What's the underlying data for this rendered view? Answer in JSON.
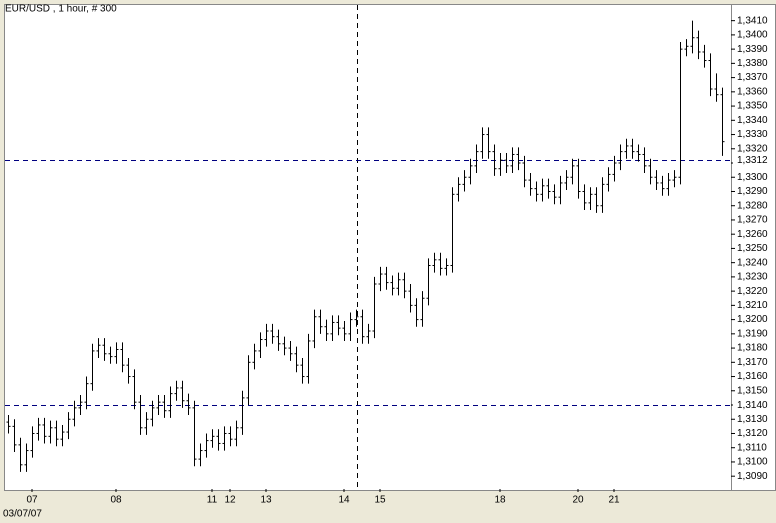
{
  "chart_data": {
    "type": "ohlc",
    "title": "EUR/USD , 1 hour, # 300",
    "date_label": "03/07/07",
    "categories": [
      null,
      null,
      null,
      null,
      "07",
      null,
      null,
      null,
      null,
      null,
      null,
      null,
      null,
      null,
      null,
      null,
      null,
      null,
      "08",
      null,
      null,
      null,
      null,
      null,
      null,
      null,
      null,
      null,
      null,
      null,
      null,
      null,
      null,
      null,
      "11",
      null,
      null,
      "12",
      null,
      null,
      null,
      null,
      null,
      "13",
      null,
      null,
      null,
      null,
      null,
      null,
      null,
      null,
      null,
      null,
      null,
      null,
      "14",
      null,
      null,
      null,
      null,
      null,
      "15",
      null,
      null,
      null,
      null,
      null,
      null,
      null,
      null,
      null,
      null,
      null,
      null,
      null,
      null,
      null,
      null,
      null,
      null,
      null,
      "18",
      null,
      null,
      null,
      null,
      null,
      null,
      null,
      null,
      null,
      null,
      null,
      null,
      "20",
      null,
      null,
      null,
      null,
      null,
      "21",
      null,
      null,
      null,
      null,
      null,
      null,
      null,
      null,
      null,
      null,
      null,
      null,
      null,
      null,
      null,
      null,
      null,
      null
    ],
    "open": [
      1.3128,
      1.3125,
      1.3112,
      1.3098,
      1.3108,
      1.312,
      1.3126,
      1.3118,
      1.3124,
      1.3116,
      1.3121,
      1.313,
      1.3138,
      1.3142,
      1.3155,
      1.3178,
      1.3182,
      1.3176,
      1.3174,
      1.3179,
      1.3168,
      1.316,
      1.3142,
      1.3124,
      1.313,
      1.3138,
      1.3142,
      1.3136,
      1.3148,
      1.3152,
      1.3143,
      1.3138,
      1.3102,
      1.3108,
      1.3115,
      1.3118,
      1.3113,
      1.312,
      1.3116,
      1.3124,
      1.3145,
      1.317,
      1.3178,
      1.3186,
      1.3192,
      1.3188,
      1.3183,
      1.318,
      1.3176,
      1.3168,
      1.316,
      1.3185,
      1.3202,
      1.3195,
      1.319,
      1.3198,
      1.3194,
      1.319,
      1.32,
      1.3202,
      1.3188,
      1.3192,
      1.3225,
      1.3232,
      1.3226,
      1.3222,
      1.3228,
      1.322,
      1.321,
      1.32,
      1.3215,
      1.3238,
      1.3242,
      1.3236,
      1.3238,
      1.3288,
      1.3295,
      1.33,
      1.3308,
      1.3318,
      1.333,
      1.3318,
      1.3306,
      1.3312,
      1.3308,
      1.3316,
      1.331,
      1.3298,
      1.3292,
      1.3288,
      1.3294,
      1.329,
      1.3286,
      1.3296,
      1.33,
      1.3308,
      1.329,
      1.3282,
      1.3288,
      1.328,
      1.3295,
      1.3302,
      1.331,
      1.3318,
      1.3322,
      1.3318,
      1.3316,
      1.3308,
      1.33,
      1.3296,
      1.3292,
      1.3298,
      1.33,
      1.339,
      1.3392,
      1.3398,
      1.3388,
      1.3382,
      1.3362,
      1.3358
    ],
    "high": [
      1.3133,
      1.313,
      1.3117,
      1.3113,
      1.3125,
      1.3131,
      1.3131,
      1.3129,
      1.3129,
      1.3126,
      1.3135,
      1.3143,
      1.3147,
      1.316,
      1.3183,
      1.3187,
      1.3187,
      1.3181,
      1.3184,
      1.3184,
      1.3173,
      1.3165,
      1.3147,
      1.3135,
      1.3143,
      1.3147,
      1.3147,
      1.3153,
      1.3157,
      1.3157,
      1.3148,
      1.3143,
      1.3113,
      1.312,
      1.3123,
      1.3123,
      1.3125,
      1.3125,
      1.3129,
      1.315,
      1.3175,
      1.3183,
      1.3191,
      1.3197,
      1.3197,
      1.3193,
      1.3188,
      1.3185,
      1.3181,
      1.3173,
      1.319,
      1.3207,
      1.3207,
      1.32,
      1.3203,
      1.3203,
      1.3199,
      1.3205,
      1.3207,
      1.3207,
      1.3197,
      1.323,
      1.3237,
      1.3237,
      1.3231,
      1.3233,
      1.3233,
      1.3225,
      1.3215,
      1.322,
      1.3243,
      1.3247,
      1.3247,
      1.3243,
      1.3293,
      1.33,
      1.3305,
      1.3313,
      1.3323,
      1.3335,
      1.3335,
      1.3323,
      1.3317,
      1.3317,
      1.3321,
      1.3321,
      1.3315,
      1.3303,
      1.3297,
      1.3299,
      1.3299,
      1.3295,
      1.3301,
      1.3305,
      1.3313,
      1.3313,
      1.3295,
      1.3293,
      1.3293,
      1.33,
      1.3307,
      1.3315,
      1.3323,
      1.3327,
      1.3327,
      1.3323,
      1.3321,
      1.3313,
      1.3305,
      1.3301,
      1.3303,
      1.3305,
      1.3395,
      1.3397,
      1.341,
      1.3403,
      1.3393,
      1.3387,
      1.3373,
      1.3363
    ],
    "low": [
      1.312,
      1.3107,
      1.3093,
      1.3093,
      1.3103,
      1.3115,
      1.3113,
      1.3113,
      1.3111,
      1.3111,
      1.3116,
      1.3125,
      1.3133,
      1.3137,
      1.315,
      1.3173,
      1.3171,
      1.3169,
      1.3169,
      1.3163,
      1.3155,
      1.3137,
      1.3119,
      1.3119,
      1.3125,
      1.3133,
      1.3131,
      1.3131,
      1.3143,
      1.3138,
      1.3133,
      1.3097,
      1.3097,
      1.3103,
      1.311,
      1.3108,
      1.3108,
      1.3111,
      1.3111,
      1.3119,
      1.314,
      1.3165,
      1.3173,
      1.3181,
      1.3183,
      1.3178,
      1.3175,
      1.3171,
      1.3163,
      1.3155,
      1.3155,
      1.318,
      1.319,
      1.3185,
      1.3185,
      1.3189,
      1.3185,
      1.3185,
      1.3195,
      1.3183,
      1.3183,
      1.3187,
      1.322,
      1.3221,
      1.3217,
      1.3217,
      1.3215,
      1.3205,
      1.3195,
      1.3195,
      1.321,
      1.3233,
      1.3231,
      1.3231,
      1.3233,
      1.3283,
      1.329,
      1.3295,
      1.3303,
      1.3313,
      1.3313,
      1.3301,
      1.3301,
      1.3303,
      1.3303,
      1.3305,
      1.3293,
      1.3287,
      1.3283,
      1.3283,
      1.3285,
      1.3281,
      1.3281,
      1.3291,
      1.3295,
      1.3285,
      1.3277,
      1.3277,
      1.3275,
      1.3275,
      1.329,
      1.3297,
      1.3305,
      1.3313,
      1.3313,
      1.3311,
      1.3303,
      1.3295,
      1.3291,
      1.3287,
      1.3287,
      1.3293,
      1.3295,
      1.3385,
      1.3387,
      1.3383,
      1.3377,
      1.3357,
      1.3353,
      1.3315
    ],
    "close": [
      1.3125,
      1.3112,
      1.3098,
      1.3108,
      1.312,
      1.3126,
      1.3118,
      1.3124,
      1.3116,
      1.3121,
      1.313,
      1.3138,
      1.3142,
      1.3155,
      1.3178,
      1.3182,
      1.3176,
      1.3174,
      1.3179,
      1.3168,
      1.316,
      1.3142,
      1.3124,
      1.313,
      1.3138,
      1.3142,
      1.3136,
      1.3148,
      1.3152,
      1.3143,
      1.3138,
      1.3102,
      1.3108,
      1.3115,
      1.3118,
      1.3113,
      1.312,
      1.3116,
      1.3124,
      1.3145,
      1.317,
      1.3178,
      1.3186,
      1.3192,
      1.3188,
      1.3183,
      1.318,
      1.3176,
      1.3168,
      1.316,
      1.3185,
      1.3202,
      1.3195,
      1.319,
      1.3198,
      1.3194,
      1.319,
      1.32,
      1.3202,
      1.3188,
      1.3192,
      1.3225,
      1.3232,
      1.3226,
      1.3222,
      1.3228,
      1.322,
      1.321,
      1.32,
      1.3215,
      1.3238,
      1.3242,
      1.3236,
      1.3238,
      1.3288,
      1.3295,
      1.33,
      1.3308,
      1.3318,
      1.333,
      1.3318,
      1.3306,
      1.3312,
      1.3308,
      1.3316,
      1.331,
      1.3298,
      1.3292,
      1.3288,
      1.3294,
      1.329,
      1.3286,
      1.3296,
      1.33,
      1.3308,
      1.329,
      1.3282,
      1.3288,
      1.328,
      1.3295,
      1.3302,
      1.331,
      1.3318,
      1.3322,
      1.3318,
      1.3316,
      1.3308,
      1.33,
      1.3296,
      1.3292,
      1.3298,
      1.33,
      1.339,
      1.3392,
      1.3398,
      1.3388,
      1.3382,
      1.3362,
      1.3358,
      1.3325
    ],
    "color": "#000000",
    "level_color": "#000080",
    "levels": [
      {
        "value": 1.3312,
        "label": "1,3312"
      },
      {
        "value": 1.314,
        "label": "1,3140"
      }
    ],
    "ylim": [
      1.3081,
      1.3421
    ],
    "yticks": [
      {
        "value": 1.309,
        "label": "1,3090"
      },
      {
        "value": 1.31,
        "label": "1,3100"
      },
      {
        "value": 1.311,
        "label": "1,3110"
      },
      {
        "value": 1.312,
        "label": "1,3120"
      },
      {
        "value": 1.313,
        "label": "1,3130"
      },
      {
        "value": 1.314,
        "label": "1,3140"
      },
      {
        "value": 1.315,
        "label": "1,3150"
      },
      {
        "value": 1.316,
        "label": "1,3160"
      },
      {
        "value": 1.317,
        "label": "1,3170"
      },
      {
        "value": 1.318,
        "label": "1,3180"
      },
      {
        "value": 1.319,
        "label": "1,3190"
      },
      {
        "value": 1.32,
        "label": "1,3200"
      },
      {
        "value": 1.321,
        "label": "1,3210"
      },
      {
        "value": 1.322,
        "label": "1,3220"
      },
      {
        "value": 1.323,
        "label": "1,3230"
      },
      {
        "value": 1.324,
        "label": "1,3240"
      },
      {
        "value": 1.325,
        "label": "1,3250"
      },
      {
        "value": 1.326,
        "label": "1,3260"
      },
      {
        "value": 1.327,
        "label": "1,3270"
      },
      {
        "value": 1.328,
        "label": "1,3280"
      },
      {
        "value": 1.329,
        "label": "1,3290"
      },
      {
        "value": 1.33,
        "label": "1,3300"
      },
      {
        "value": 1.331,
        "label": "1,3310"
      },
      {
        "value": 1.332,
        "label": "1,3320"
      },
      {
        "value": 1.333,
        "label": "1,3330"
      },
      {
        "value": 1.334,
        "label": "1,3340"
      },
      {
        "value": 1.335,
        "label": "1,3350"
      },
      {
        "value": 1.336,
        "label": "1,3360"
      },
      {
        "value": 1.337,
        "label": "1,3370"
      },
      {
        "value": 1.338,
        "label": "1,3380"
      },
      {
        "value": 1.339,
        "label": "1,3390"
      },
      {
        "value": 1.34,
        "label": "1,3400"
      },
      {
        "value": 1.341,
        "label": "1,3410"
      }
    ]
  }
}
